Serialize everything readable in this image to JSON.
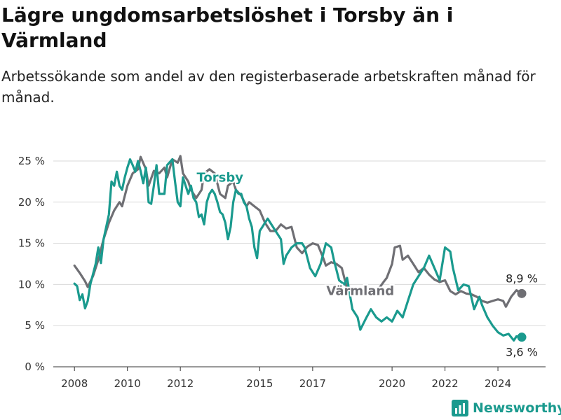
{
  "header": {
    "title": "Lägre ungdomsarbetslöshet i Torsby än i Värmland",
    "subtitle": "Arbetssökande som andel av den registerbaserade arbetskraften månad för månad."
  },
  "brand": {
    "name": "Newsworthy"
  },
  "colors": {
    "torsby": "#1a9a8e",
    "varmland": "#6f6f74",
    "grid": "#d9d9d9",
    "axis": "#333333"
  },
  "chart_data": {
    "type": "line",
    "title": "Lägre ungdomsarbetslöshet i Torsby än i Värmland",
    "subtitle": "Arbetssökande som andel av den registerbaserade arbetskraften månad för månad.",
    "xlim": [
      2007.2,
      2025.8
    ],
    "ylim": [
      0,
      25
    ],
    "grid": true,
    "x_ticks": [
      2008,
      2010,
      2012,
      2015,
      2017,
      2020,
      2022,
      2024
    ],
    "x_tick_labels": [
      "2008",
      "2010",
      "2012",
      "2015",
      "2017",
      "2020",
      "2022",
      "2024"
    ],
    "y_ticks": [
      0,
      5,
      10,
      15,
      20,
      25
    ],
    "y_tick_labels": [
      "0 %",
      "5 %",
      "10 %",
      "15 %",
      "20 %",
      "25 %"
    ],
    "series": [
      {
        "name": "Värmland",
        "color": "#6f6f74",
        "end_label": "8,9 %",
        "points": [
          [
            2008.0,
            12.3
          ],
          [
            2008.2,
            11.4
          ],
          [
            2008.4,
            10.4
          ],
          [
            2008.5,
            9.7
          ],
          [
            2008.7,
            11.0
          ],
          [
            2008.9,
            13.0
          ],
          [
            2009.1,
            15.5
          ],
          [
            2009.3,
            17.5
          ],
          [
            2009.5,
            19.0
          ],
          [
            2009.7,
            20.0
          ],
          [
            2009.8,
            19.5
          ],
          [
            2010.0,
            22.0
          ],
          [
            2010.2,
            23.5
          ],
          [
            2010.4,
            24.0
          ],
          [
            2010.5,
            25.5
          ],
          [
            2010.7,
            24.0
          ],
          [
            2010.8,
            22.0
          ],
          [
            2011.0,
            23.8
          ],
          [
            2011.2,
            23.5
          ],
          [
            2011.4,
            24.2
          ],
          [
            2011.5,
            23.0
          ],
          [
            2011.7,
            25.2
          ],
          [
            2011.9,
            24.8
          ],
          [
            2012.0,
            25.6
          ],
          [
            2012.1,
            23.5
          ],
          [
            2012.3,
            22.5
          ],
          [
            2012.4,
            21.5
          ],
          [
            2012.6,
            20.5
          ],
          [
            2012.8,
            21.5
          ],
          [
            2012.9,
            23.5
          ],
          [
            2013.1,
            24.0
          ],
          [
            2013.3,
            23.5
          ],
          [
            2013.5,
            21.0
          ],
          [
            2013.7,
            20.5
          ],
          [
            2013.8,
            22.0
          ],
          [
            2014.0,
            22.5
          ],
          [
            2014.1,
            21.5
          ],
          [
            2014.3,
            20.8
          ],
          [
            2014.5,
            19.5
          ],
          [
            2014.6,
            20.0
          ],
          [
            2014.8,
            19.5
          ],
          [
            2015.0,
            19.0
          ],
          [
            2015.2,
            17.5
          ],
          [
            2015.4,
            16.5
          ],
          [
            2015.6,
            16.5
          ],
          [
            2015.8,
            17.3
          ],
          [
            2016.0,
            16.8
          ],
          [
            2016.2,
            17.0
          ],
          [
            2016.4,
            14.5
          ],
          [
            2016.6,
            13.8
          ],
          [
            2016.8,
            14.6
          ],
          [
            2017.0,
            15.0
          ],
          [
            2017.2,
            14.8
          ],
          [
            2017.4,
            13.2
          ],
          [
            2017.5,
            12.3
          ],
          [
            2017.7,
            12.7
          ],
          [
            2017.9,
            12.5
          ],
          [
            2018.1,
            12.0
          ],
          [
            2018.3,
            9.5
          ],
          null,
          [
            2019.5,
            9.5
          ],
          [
            2019.7,
            10.4
          ],
          [
            2019.8,
            10.8
          ],
          [
            2020.0,
            12.5
          ],
          [
            2020.1,
            14.5
          ],
          [
            2020.3,
            14.7
          ],
          [
            2020.4,
            13.0
          ],
          [
            2020.6,
            13.5
          ],
          [
            2020.8,
            12.5
          ],
          [
            2021.0,
            11.5
          ],
          [
            2021.2,
            12.0
          ],
          [
            2021.4,
            11.2
          ],
          [
            2021.6,
            10.6
          ],
          [
            2021.8,
            10.3
          ],
          [
            2022.0,
            10.5
          ],
          [
            2022.2,
            9.2
          ],
          [
            2022.4,
            8.8
          ],
          [
            2022.6,
            9.2
          ],
          [
            2022.8,
            8.9
          ],
          [
            2023.0,
            8.8
          ],
          [
            2023.2,
            8.5
          ],
          [
            2023.4,
            8.0
          ],
          [
            2023.6,
            7.8
          ],
          [
            2023.8,
            8.0
          ],
          [
            2024.0,
            8.2
          ],
          [
            2024.2,
            8.0
          ],
          [
            2024.3,
            7.3
          ],
          [
            2024.5,
            8.5
          ],
          [
            2024.7,
            9.3
          ],
          [
            2024.9,
            8.9
          ]
        ]
      },
      {
        "name": "Torsby",
        "color": "#1a9a8e",
        "end_label": "3,6 %",
        "points": [
          [
            2008.0,
            10.1
          ],
          [
            2008.1,
            9.8
          ],
          [
            2008.2,
            8.1
          ],
          [
            2008.3,
            8.8
          ],
          [
            2008.4,
            7.1
          ],
          [
            2008.5,
            8.0
          ],
          [
            2008.6,
            10.0
          ],
          [
            2008.8,
            12.5
          ],
          [
            2008.9,
            14.5
          ],
          [
            2009.0,
            12.6
          ],
          [
            2009.1,
            15.5
          ],
          [
            2009.3,
            18.5
          ],
          [
            2009.4,
            22.5
          ],
          [
            2009.5,
            22.0
          ],
          [
            2009.6,
            23.7
          ],
          [
            2009.7,
            22.0
          ],
          [
            2009.8,
            21.5
          ],
          [
            2009.9,
            23.0
          ],
          [
            2010.0,
            24.2
          ],
          [
            2010.1,
            25.2
          ],
          [
            2010.2,
            24.5
          ],
          [
            2010.3,
            23.7
          ],
          [
            2010.4,
            25.0
          ],
          [
            2010.5,
            23.8
          ],
          [
            2010.6,
            22.3
          ],
          [
            2010.7,
            24.2
          ],
          [
            2010.8,
            20.0
          ],
          [
            2010.9,
            19.8
          ],
          [
            2011.0,
            22.0
          ],
          [
            2011.1,
            24.5
          ],
          [
            2011.2,
            21.0
          ],
          [
            2011.4,
            21.0
          ],
          [
            2011.5,
            24.5
          ],
          [
            2011.7,
            25.2
          ],
          [
            2011.8,
            22.5
          ],
          [
            2011.9,
            20.0
          ],
          [
            2012.0,
            19.5
          ],
          [
            2012.1,
            23.0
          ],
          [
            2012.2,
            22.0
          ],
          [
            2012.3,
            21.0
          ],
          [
            2012.4,
            22.0
          ],
          [
            2012.5,
            20.5
          ],
          [
            2012.6,
            20.0
          ],
          [
            2012.7,
            18.2
          ],
          [
            2012.8,
            18.5
          ],
          [
            2012.9,
            17.3
          ],
          [
            2013.0,
            20.0
          ],
          [
            2013.1,
            21.0
          ],
          [
            2013.2,
            21.5
          ],
          [
            2013.3,
            21.0
          ],
          [
            2013.4,
            20.0
          ],
          [
            2013.5,
            18.8
          ],
          [
            2013.6,
            18.5
          ],
          [
            2013.7,
            17.5
          ],
          [
            2013.8,
            15.5
          ],
          [
            2013.9,
            17.0
          ],
          [
            2014.0,
            20.0
          ],
          [
            2014.1,
            21.5
          ],
          [
            2014.2,
            21.0
          ],
          [
            2014.3,
            21.0
          ],
          [
            2014.4,
            20.0
          ],
          [
            2014.5,
            19.5
          ],
          [
            2014.6,
            18.0
          ],
          [
            2014.7,
            17.0
          ],
          [
            2014.8,
            14.5
          ],
          [
            2014.9,
            13.2
          ],
          [
            2015.0,
            16.5
          ],
          [
            2015.1,
            17.0
          ],
          [
            2015.3,
            18.0
          ],
          [
            2015.4,
            17.5
          ],
          [
            2015.6,
            16.5
          ],
          [
            2015.8,
            15.5
          ],
          [
            2015.9,
            12.5
          ],
          [
            2016.0,
            13.5
          ],
          [
            2016.2,
            14.5
          ],
          [
            2016.4,
            15.0
          ],
          [
            2016.6,
            15.0
          ],
          [
            2016.7,
            14.5
          ],
          [
            2016.9,
            12.0
          ],
          [
            2017.1,
            11.0
          ],
          [
            2017.3,
            12.5
          ],
          [
            2017.5,
            15.0
          ],
          [
            2017.7,
            14.5
          ],
          [
            2017.8,
            13.0
          ],
          [
            2018.0,
            10.5
          ],
          [
            2018.2,
            10.0
          ],
          [
            2018.3,
            10.8
          ],
          [
            2018.5,
            7.0
          ],
          [
            2018.7,
            6.0
          ],
          [
            2018.8,
            4.5
          ],
          [
            2019.0,
            5.8
          ],
          [
            2019.2,
            7.0
          ],
          [
            2019.4,
            6.0
          ],
          [
            2019.6,
            5.5
          ],
          [
            2019.8,
            6.0
          ],
          [
            2020.0,
            5.5
          ],
          [
            2020.2,
            6.8
          ],
          [
            2020.4,
            6.0
          ],
          [
            2020.6,
            8.0
          ],
          [
            2020.8,
            10.0
          ],
          [
            2021.0,
            11.0
          ],
          [
            2021.2,
            12.0
          ],
          [
            2021.4,
            13.5
          ],
          [
            2021.6,
            12.0
          ],
          [
            2021.8,
            10.5
          ],
          [
            2022.0,
            14.5
          ],
          [
            2022.2,
            14.0
          ],
          [
            2022.3,
            12.0
          ],
          [
            2022.5,
            9.3
          ],
          [
            2022.7,
            10.0
          ],
          [
            2022.9,
            9.8
          ],
          [
            2023.1,
            7.0
          ],
          [
            2023.3,
            8.5
          ],
          [
            2023.4,
            7.5
          ],
          [
            2023.6,
            6.0
          ],
          [
            2023.8,
            5.0
          ],
          [
            2024.0,
            4.2
          ],
          [
            2024.2,
            3.8
          ],
          [
            2024.4,
            4.0
          ],
          [
            2024.6,
            3.2
          ],
          [
            2024.7,
            3.7
          ],
          [
            2024.9,
            3.6
          ]
        ]
      }
    ],
    "annotations": [
      {
        "text": "Torsby",
        "series": "Torsby",
        "x": 2013.5,
        "y": 22.5
      },
      {
        "text": "Värmland",
        "series": "Värmland",
        "x": 2018.8,
        "y": 8.7
      }
    ]
  }
}
